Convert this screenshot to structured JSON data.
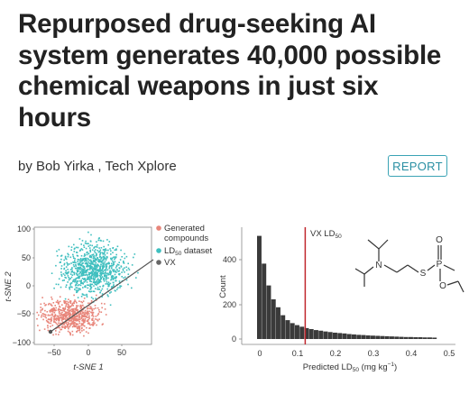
{
  "article": {
    "headline": "Repurposed drug-seeking AI system generates 40,000 possible chemical weapons in just six hours",
    "byline": "by Bob Yirka , Tech Xplore",
    "report_label": "REPORT"
  },
  "chart_data": [
    {
      "type": "scatter",
      "xlabel": "t-SNE 1",
      "ylabel": "t-SNE 2",
      "xlim": [
        -75,
        75
      ],
      "ylim": [
        -100,
        100
      ],
      "xticks": [
        "−50",
        "0",
        "50"
      ],
      "yticks": [
        "100",
        "50",
        "0",
        "−50",
        "−100"
      ],
      "legend": [
        "Generated compounds",
        "LD50 dataset",
        "VX"
      ],
      "legend_placement": "right",
      "colors": {
        "generated": "#e8857a",
        "dataset": "#3fbfbf",
        "vx": "#666666"
      }
    },
    {
      "type": "bar",
      "xlabel": "Predicted LD50 (mg kg−1)",
      "ylabel": "Count",
      "xticks": [
        "0",
        "0.1",
        "0.2",
        "0.3",
        "0.4",
        "0.5"
      ],
      "yticks": [
        "0",
        "200",
        "400"
      ],
      "annotation": "VX LD50",
      "vx_line_x": 0.12,
      "bins_start": 0.0,
      "bin_width": 0.0125,
      "values": [
        520,
        380,
        270,
        200,
        160,
        120,
        95,
        80,
        70,
        62,
        55,
        50,
        45,
        42,
        38,
        35,
        32,
        30,
        28,
        25,
        23,
        21,
        20,
        18,
        17,
        16,
        15,
        14,
        13,
        12,
        11,
        10,
        10,
        9,
        9,
        8,
        8,
        7
      ],
      "colors": {
        "bars": "#3a3a3a",
        "vx_line": "#c0272d"
      }
    }
  ]
}
